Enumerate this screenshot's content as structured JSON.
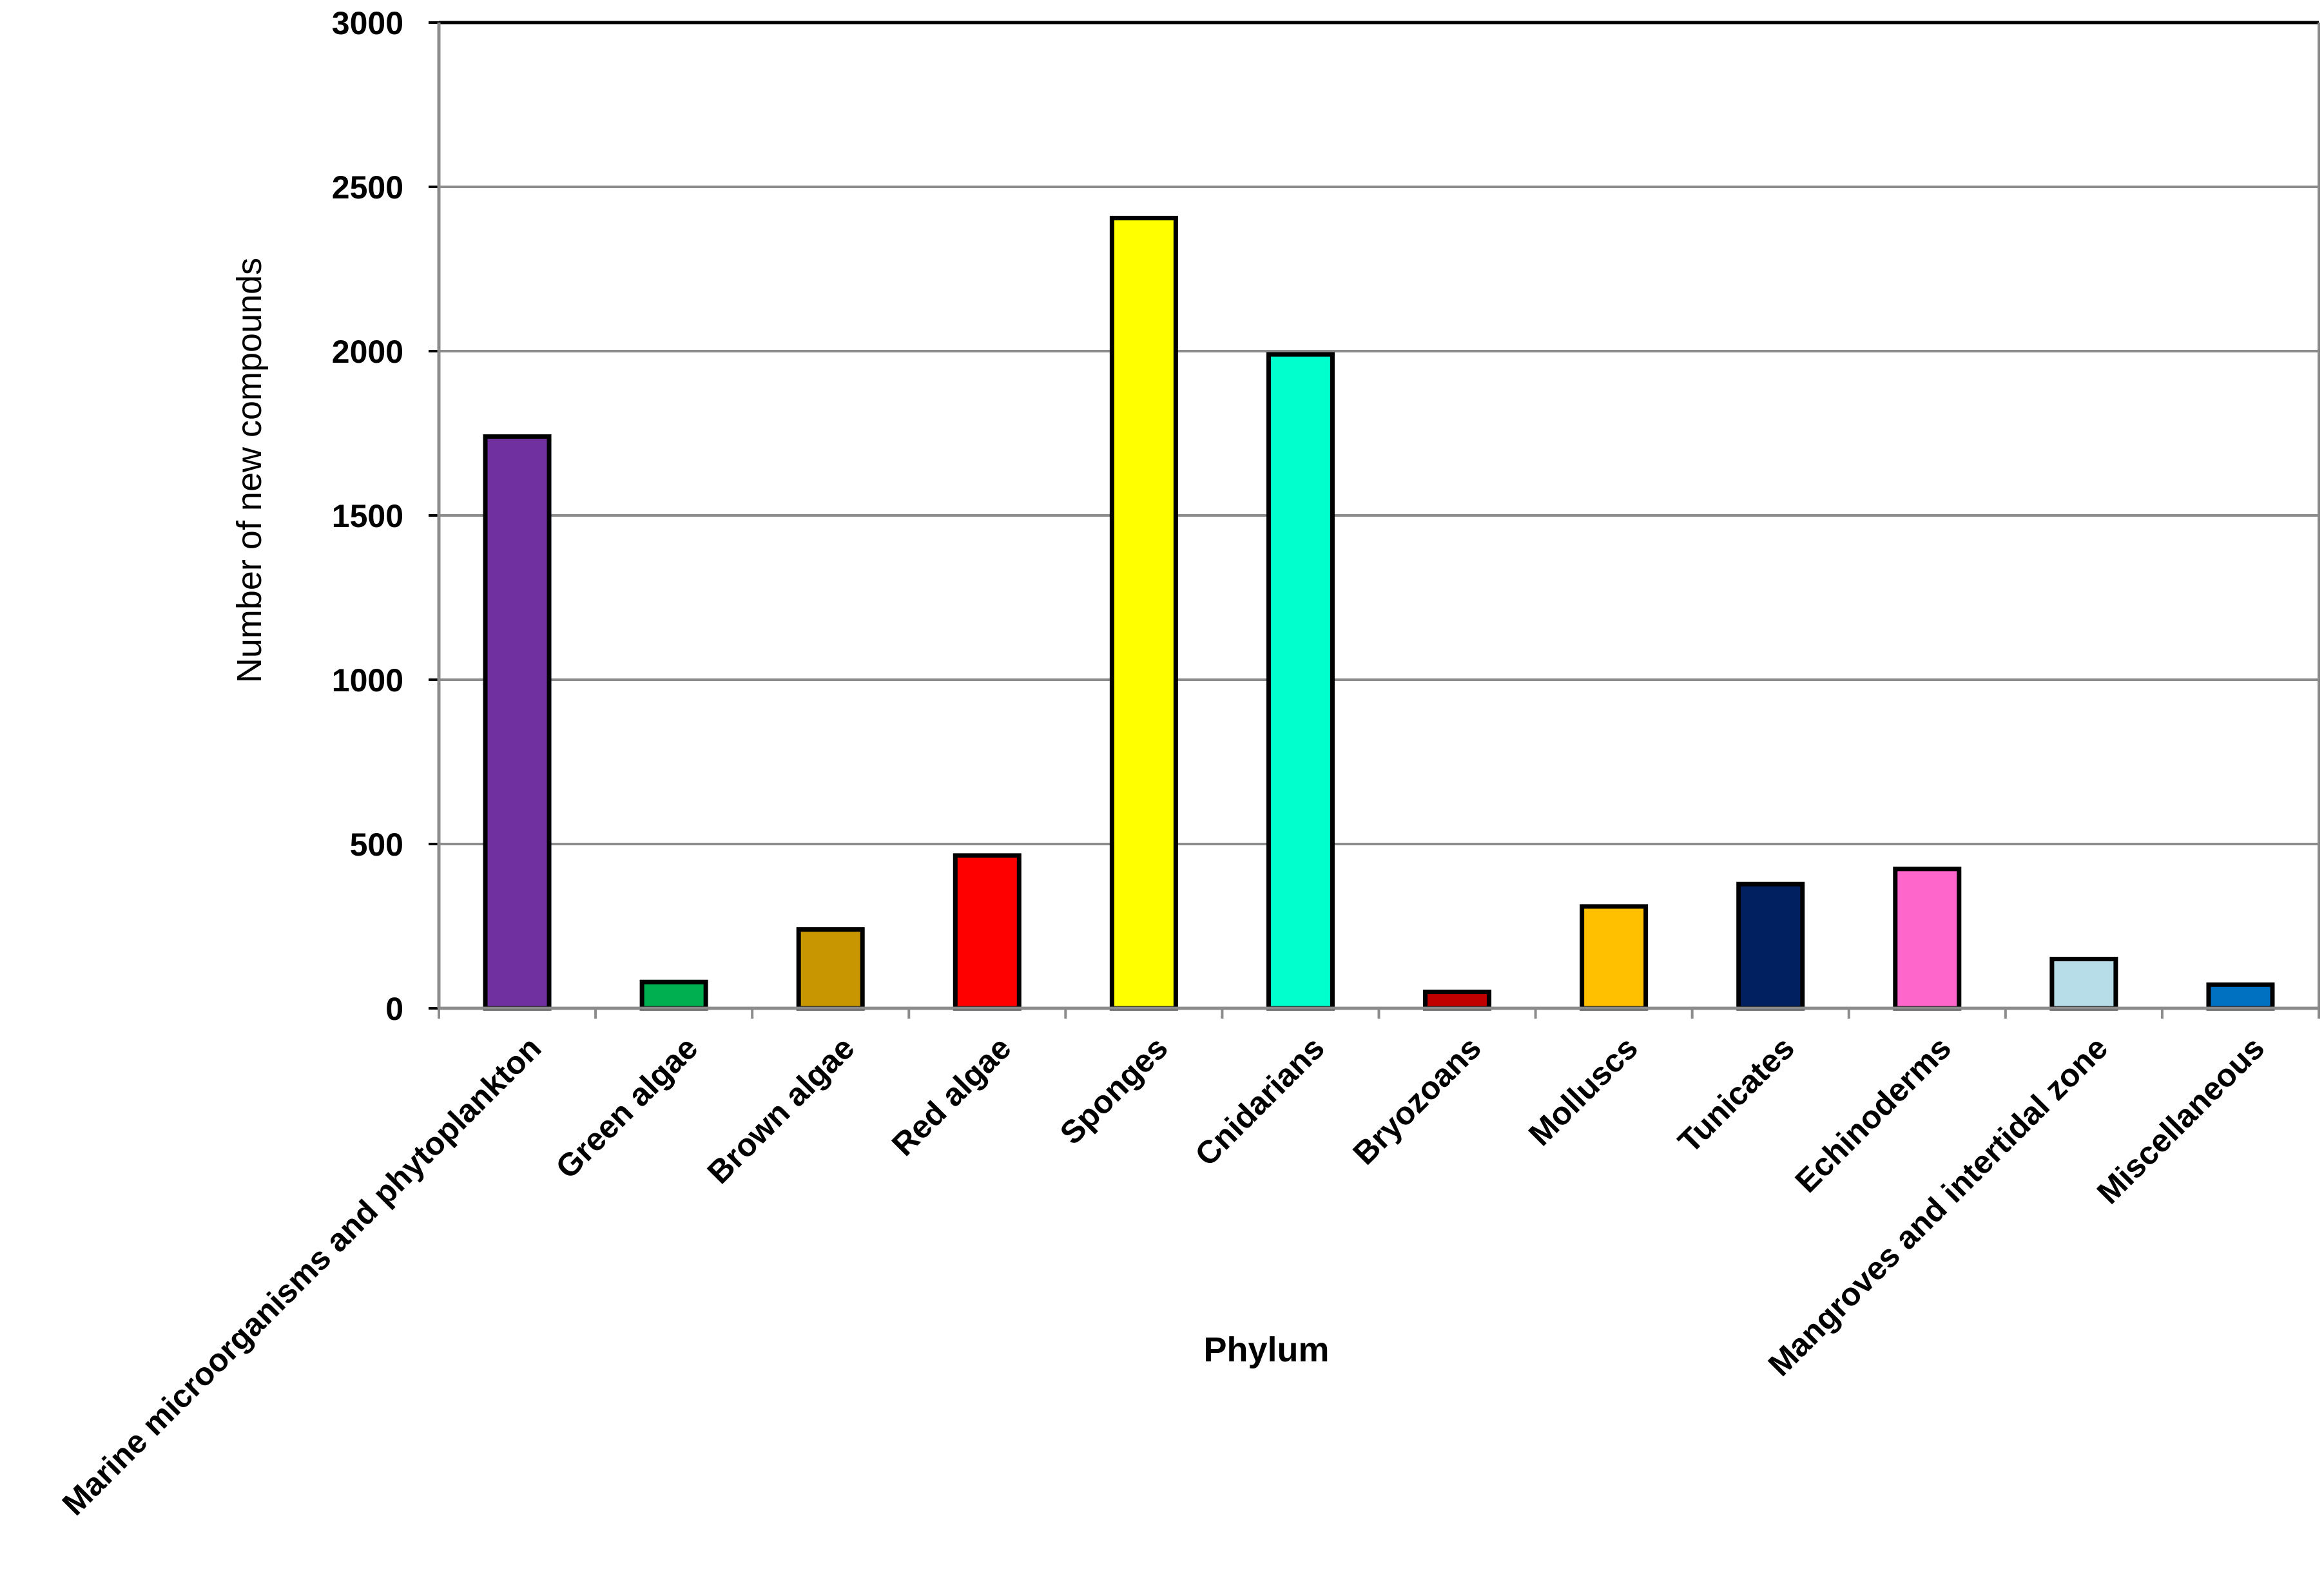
{
  "chart_data": {
    "type": "bar",
    "xlabel": "Phylum",
    "ylabel": "Number of new compounds",
    "ylim": [
      0,
      3000
    ],
    "yticks": [
      0,
      500,
      1000,
      1500,
      2000,
      2500,
      3000
    ],
    "grid": true,
    "legend": "none",
    "categories": [
      "Marine microorganisms and phytoplankton",
      "Green algae",
      "Brown algae",
      "Red algae",
      "Sponges",
      "Cnidarians",
      "Bryozoans",
      "Molluscs",
      "Tunicates",
      "Echinoderms",
      "Mangroves and intertidal zone",
      "Miscellaneous"
    ],
    "values": [
      1740,
      80,
      240,
      465,
      2405,
      1990,
      50,
      310,
      378,
      424,
      150,
      72
    ],
    "colors": [
      "#7030A0",
      "#00B050",
      "#C89600",
      "#FF0000",
      "#FFFF00",
      "#00FFCC",
      "#C00000",
      "#FFC000",
      "#002060",
      "#FF66CC",
      "#B7DEE8",
      "#0070C0"
    ]
  }
}
